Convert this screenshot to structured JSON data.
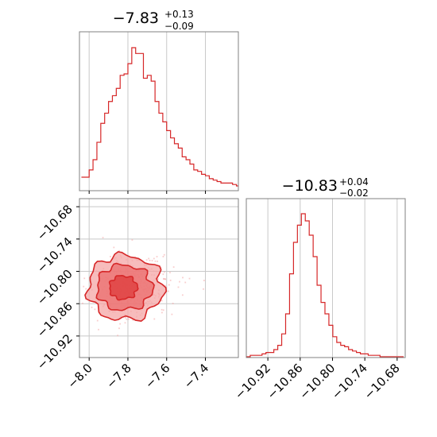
{
  "colors": {
    "accent": "#d62728",
    "fill_light": "#f4a6a6",
    "fill_mid": "#eb6c6c",
    "fill_dark": "#de3b3b"
  },
  "chart_data": [
    {
      "type": "histogram",
      "param_index": 0,
      "title": {
        "value": "−7.83",
        "plus": "+0.13",
        "minus": "−0.09"
      },
      "xlim": [
        -8.05,
        -7.23
      ],
      "xticks": [
        -8.0,
        -7.8,
        -7.6,
        -7.4
      ],
      "grid": true,
      "bins": {
        "start": -8.04,
        "width": 0.02,
        "counts": [
          6,
          6,
          11,
          18,
          30,
          43,
          50,
          58,
          62,
          67,
          76,
          77,
          84,
          95,
          91,
          91,
          74,
          76,
          72,
          58,
          50,
          44,
          38,
          33,
          29,
          26,
          20,
          18,
          15,
          11,
          10,
          8,
          7,
          5,
          4,
          3,
          2,
          2,
          2,
          1,
          0
        ]
      }
    },
    {
      "type": "scatter",
      "subtype": "2d-contour",
      "xlim": [
        -8.05,
        -7.23
      ],
      "ylim": [
        -10.96,
        -10.665
      ],
      "xticks": [
        -8.0,
        -7.8,
        -7.6,
        -7.4
      ],
      "xtick_labels": [
        "−8.0",
        "−7.8",
        "−7.6",
        "−7.4"
      ],
      "yticks": [
        -10.68,
        -10.74,
        -10.8,
        -10.86,
        -10.92
      ],
      "ytick_labels": [
        "−10.68",
        "−10.74",
        "−10.80",
        "−10.86",
        "−10.92"
      ],
      "grid": true,
      "center": {
        "x": -7.83,
        "y": -10.83
      },
      "contours": [
        {
          "level": "outer",
          "rx": 0.19,
          "ry": 0.06
        },
        {
          "level": "middle",
          "rx": 0.14,
          "ry": 0.042
        },
        {
          "level": "inner",
          "rx": 0.07,
          "ry": 0.022
        }
      ]
    },
    {
      "type": "histogram",
      "param_index": 1,
      "title": {
        "value": "−10.83",
        "plus": "+0.04",
        "minus": "−0.02"
      },
      "xlim": [
        -10.96,
        -10.665
      ],
      "xticks": [
        -10.92,
        -10.86,
        -10.8,
        -10.74,
        -10.68
      ],
      "xtick_labels": [
        "−10.92",
        "−10.86",
        "−10.80",
        "−10.74",
        "−10.68"
      ],
      "grid": true,
      "bins": {
        "start": -10.96,
        "width": 0.0073,
        "counts": [
          0,
          1,
          1,
          1,
          2,
          3,
          3,
          5,
          8,
          16,
          30,
          58,
          80,
          92,
          100,
          95,
          85,
          70,
          50,
          38,
          30,
          22,
          14,
          10,
          8,
          7,
          5,
          4,
          3,
          2,
          2,
          1,
          1,
          1,
          0,
          0,
          0,
          0,
          0,
          0
        ]
      }
    }
  ]
}
